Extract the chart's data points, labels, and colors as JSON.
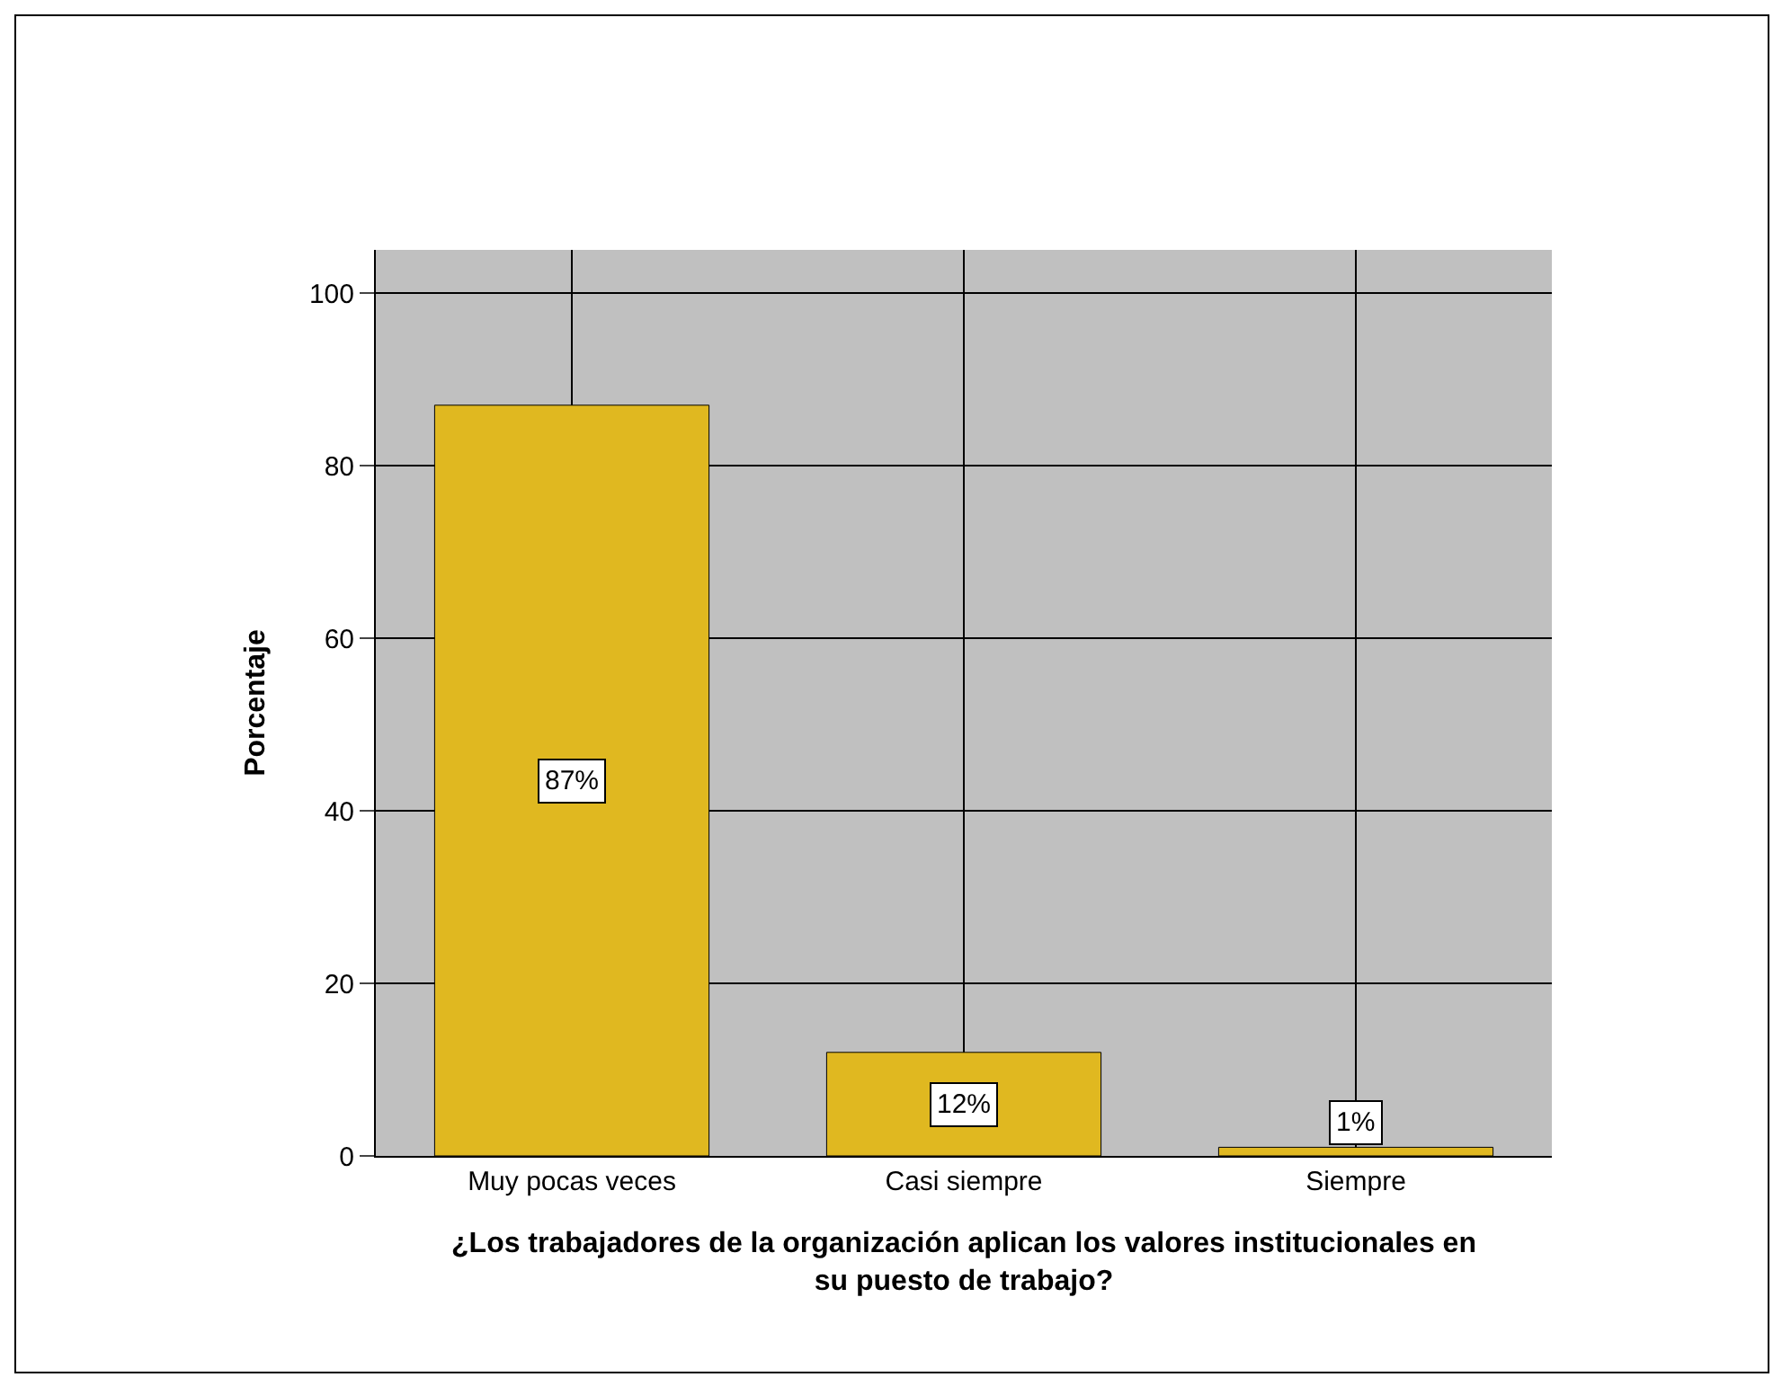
{
  "chart_data": {
    "type": "bar",
    "categories": [
      "Muy pocas veces",
      "Casi siempre",
      "Siempre"
    ],
    "values": [
      87,
      12,
      1
    ],
    "value_labels": [
      "87%",
      "12%",
      "1%"
    ],
    "color": "#e0b820",
    "ylabel": "Porcentaje",
    "xlabel": "¿Los trabajadores de la organización aplican los valores institucionales en su puesto de trabajo?",
    "ylim": [
      0,
      105
    ],
    "yticks": [
      0,
      20,
      40,
      60,
      80,
      100
    ],
    "grid": true,
    "legend": false
  }
}
